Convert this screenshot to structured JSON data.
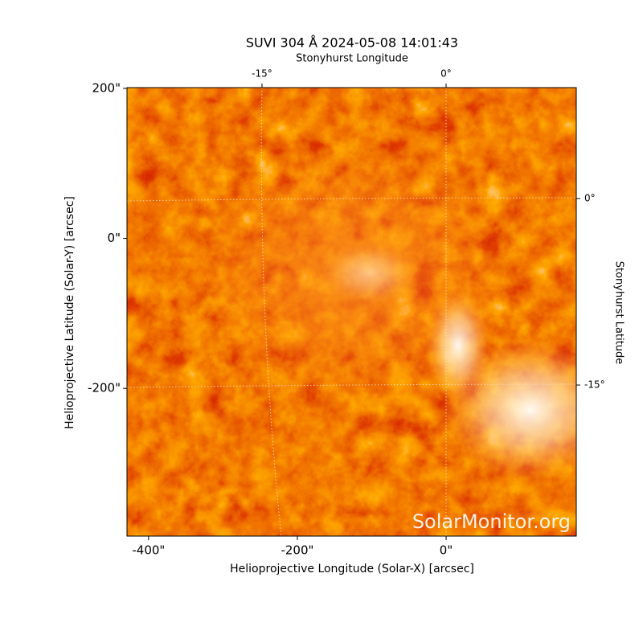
{
  "chart_data": {
    "type": "image",
    "title": "SUVI 304 Å 2024-05-08 14:01:43",
    "xlabel": "Helioprojective Longitude (Solar-X) [arcsec]",
    "ylabel": "Helioprojective Latitude (Solar-Y) [arcsec]",
    "top_label": "Stonyhurst Longitude",
    "right_label": "Stonyhurst Latitude",
    "watermark": "SolarMonitor.org",
    "xlim": [
      -429,
      175
    ],
    "ylim": [
      -397,
      201
    ],
    "xticks": [
      {
        "value": -400,
        "label": "-400\""
      },
      {
        "value": -200,
        "label": "-200\""
      },
      {
        "value": 0,
        "label": "0\""
      }
    ],
    "yticks": [
      {
        "value": -200,
        "label": "-200\""
      },
      {
        "value": 0,
        "label": "0\""
      },
      {
        "value": 200,
        "label": "200\""
      }
    ],
    "top_ticks": [
      {
        "value": -15,
        "label": "-15°"
      },
      {
        "value": 0,
        "label": "0°"
      }
    ],
    "right_ticks": [
      {
        "value": 0,
        "label": "0°"
      },
      {
        "value": -15,
        "label": "-15°"
      }
    ]
  }
}
